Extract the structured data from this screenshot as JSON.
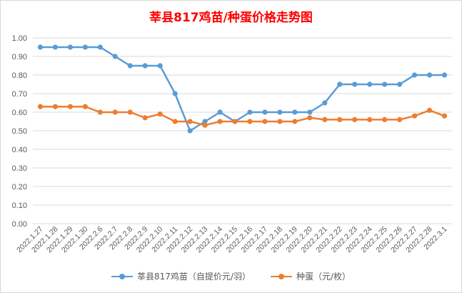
{
  "chart_data": {
    "type": "line",
    "title": "莘县817鸡苗/种蛋价格走势图",
    "categories": [
      "2022.1.27",
      "2022.1.28",
      "2022.1.29",
      "2022.1.30",
      "2022.2.6",
      "2022.2.7",
      "2022.2.8",
      "2022.2.9",
      "2022.2.10",
      "2022.2.11",
      "2022.2.12",
      "2022.2.13",
      "2022.2.14",
      "2022.2.15",
      "2022.2.16",
      "2022.2.17",
      "2022.2.18",
      "2022.2.19",
      "2022.2.20",
      "2022.2.21",
      "2022.2.22",
      "2022.2.23",
      "2022.2.24",
      "2022.2.25",
      "2022.2.26",
      "2022.2.27",
      "2022.2.28",
      "2022.3.1"
    ],
    "series": [
      {
        "name": "莘县817鸡苗（自提价元/羽）",
        "color": "#5b9bd5",
        "values": [
          0.95,
          0.95,
          0.95,
          0.95,
          0.95,
          0.9,
          0.85,
          0.85,
          0.85,
          0.7,
          0.5,
          0.55,
          0.6,
          0.55,
          0.6,
          0.6,
          0.6,
          0.6,
          0.6,
          0.65,
          0.75,
          0.75,
          0.75,
          0.75,
          0.75,
          0.8,
          0.8,
          0.8
        ]
      },
      {
        "name": "种蛋（元/枚）",
        "color": "#ed7d31",
        "values": [
          0.63,
          0.63,
          0.63,
          0.63,
          0.6,
          0.6,
          0.6,
          0.57,
          0.59,
          0.55,
          0.55,
          0.53,
          0.55,
          0.55,
          0.55,
          0.55,
          0.55,
          0.55,
          0.57,
          0.56,
          0.56,
          0.56,
          0.56,
          0.56,
          0.56,
          0.58,
          0.61,
          0.58
        ]
      }
    ],
    "ylim": [
      0,
      1.0
    ],
    "yticks": [
      "0.00",
      "0.10",
      "0.20",
      "0.30",
      "0.40",
      "0.50",
      "0.60",
      "0.70",
      "0.80",
      "0.90",
      "1.00"
    ],
    "grid": true,
    "legend_position": "bottom"
  }
}
